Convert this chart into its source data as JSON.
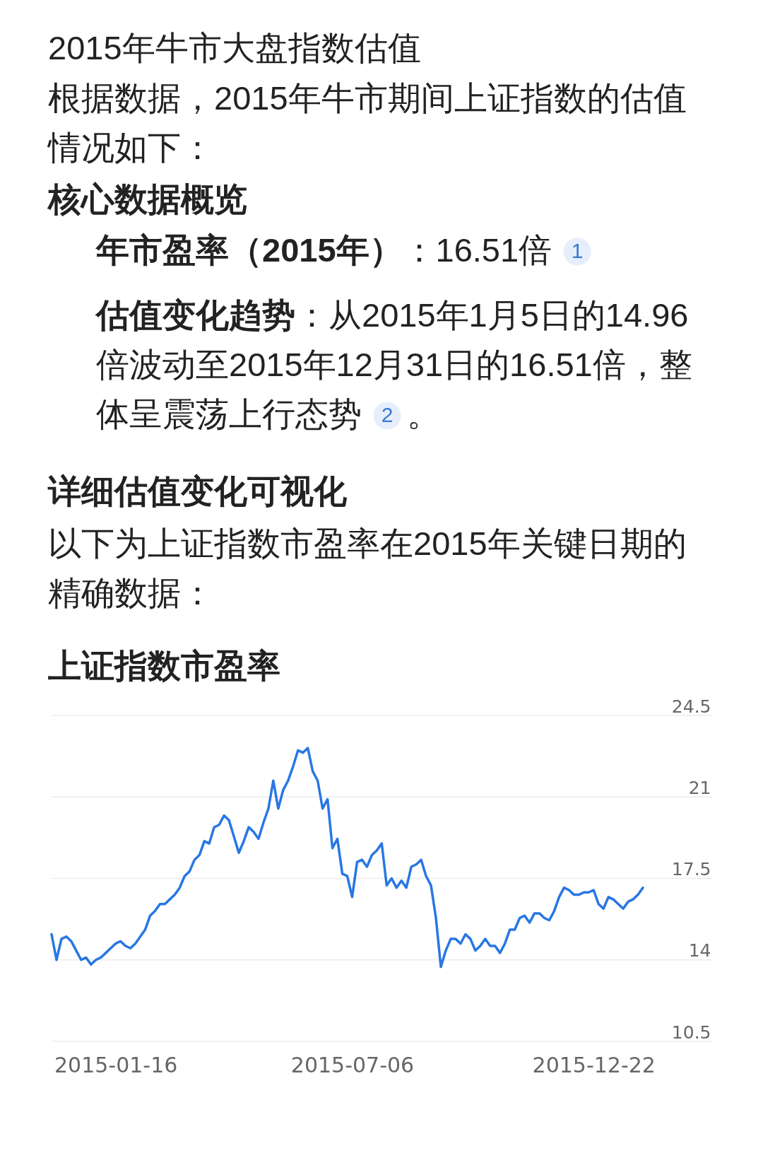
{
  "chart_data": {
    "type": "line",
    "title": "上证指数市盈率",
    "annotations": [
      "2015年牛市大盘指数估值",
      "根据数据，2015年牛市期间上证指数的估值情况如下：",
      "核心数据概览",
      "年市盈率（2015年）",
      "：16.51倍",
      "1",
      "估值变化趋势",
      "：从2015年1月5日的14.96倍波动至2015年12月31日的16.51倍，整体呈震荡上行态势",
      "2",
      "。",
      "详细估值变化可视化",
      "以下为上证指数市盈率在2015年关键日期的精确数据："
    ],
    "categories": [
      null,
      null,
      null,
      null,
      null,
      null,
      null,
      null,
      null,
      null,
      null,
      null,
      null,
      "2015-01-16",
      null,
      null,
      null,
      null,
      null,
      null,
      null,
      null,
      null,
      null,
      null,
      null,
      null,
      null,
      null,
      null,
      null,
      null,
      null,
      null,
      null,
      null,
      null,
      null,
      null,
      null,
      null,
      null,
      null,
      null,
      null,
      null,
      null,
      null,
      null,
      null,
      null,
      null,
      null,
      null,
      null,
      null,
      null,
      null,
      null,
      null,
      null,
      "2015-07-06",
      null,
      null,
      null,
      null,
      null,
      null,
      null,
      null,
      null,
      null,
      null,
      null,
      null,
      null,
      null,
      null,
      null,
      null,
      null,
      null,
      null,
      null,
      null,
      null,
      null,
      null,
      null,
      null,
      null,
      null,
      null,
      null,
      null,
      null,
      null,
      null,
      null,
      null,
      null,
      null,
      null,
      null,
      null,
      null,
      null,
      null,
      null,
      null,
      "2015-12-22",
      null,
      null,
      null,
      null,
      null,
      null,
      null,
      null,
      null,
      null
    ],
    "series": [
      {
        "color": "#2877e3",
        "values": [
          15.1,
          14.0,
          14.9,
          15.0,
          14.8,
          14.4,
          14.0,
          14.1,
          13.8,
          14.0,
          14.1,
          14.3,
          14.5,
          14.7,
          14.8,
          14.6,
          14.5,
          14.7,
          15.0,
          15.3,
          15.9,
          16.1,
          16.4,
          16.4,
          16.6,
          16.8,
          17.1,
          17.6,
          17.8,
          18.3,
          18.5,
          19.1,
          19.0,
          19.7,
          19.8,
          20.2,
          20.0,
          19.3,
          18.6,
          19.1,
          19.7,
          19.5,
          19.2,
          19.9,
          20.5,
          21.7,
          20.5,
          21.3,
          21.7,
          22.3,
          23.0,
          22.9,
          23.1,
          22.1,
          21.7,
          20.5,
          20.9,
          18.8,
          19.2,
          17.7,
          17.6,
          16.7,
          18.2,
          18.3,
          18.0,
          18.5,
          18.7,
          19.0,
          17.2,
          17.5,
          17.1,
          17.4,
          17.1,
          18.0,
          18.1,
          18.3,
          17.6,
          17.2,
          15.8,
          13.7,
          14.4,
          14.9,
          14.9,
          14.7,
          15.1,
          14.9,
          14.4,
          14.6,
          14.9,
          14.6,
          14.6,
          14.3,
          14.7,
          15.3,
          15.3,
          15.8,
          15.9,
          15.6,
          16.0,
          16.0,
          15.8,
          15.7,
          16.1,
          16.7,
          17.1,
          17.0,
          16.8,
          16.8,
          16.9,
          16.9,
          17.0,
          16.4,
          16.2,
          16.7,
          16.6,
          16.4,
          16.2,
          16.5,
          16.6,
          16.8,
          17.1
        ]
      }
    ],
    "ylim": [
      10.5,
      24.5
    ],
    "yticks": [
      10.5,
      14,
      17.5,
      21,
      24.5
    ],
    "grid": "y"
  }
}
